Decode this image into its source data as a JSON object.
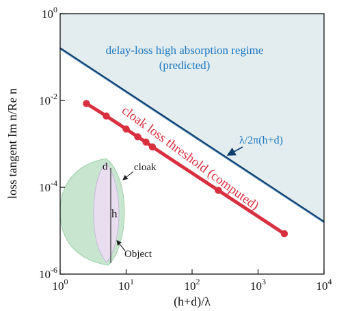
{
  "chart_data": {
    "type": "line",
    "x_scale": "log",
    "y_scale": "log",
    "xlim": [
      1,
      10000
    ],
    "ylim": [
      1e-06,
      1
    ],
    "xlabel": "(h+d)/λ",
    "ylabel": "loss tangent Im n/Re n",
    "x_ticks": [
      {
        "base": "10",
        "exp": "0",
        "value": 1
      },
      {
        "base": "10",
        "exp": "1",
        "value": 10
      },
      {
        "base": "10",
        "exp": "2",
        "value": 100
      },
      {
        "base": "10",
        "exp": "3",
        "value": 1000
      },
      {
        "base": "10",
        "exp": "4",
        "value": 10000
      }
    ],
    "y_ticks": [
      {
        "base": "10",
        "exp": "-6",
        "value": 1e-06
      },
      {
        "base": "10",
        "exp": "-4",
        "value": 0.0001
      },
      {
        "base": "10",
        "exp": "-2",
        "value": 0.01
      },
      {
        "base": "10",
        "exp": "0",
        "value": 1
      }
    ],
    "series": [
      {
        "name": "λ/2π(h+d)",
        "color": "#0b3d6e",
        "points": [
          [
            1,
            0.159
          ],
          [
            10000,
            1.59e-05
          ]
        ]
      },
      {
        "name": "cloak loss threshold (computed)",
        "color": "#d93040",
        "points": [
          [
            2.5,
            0.0085
          ],
          [
            5,
            0.0044
          ],
          [
            10,
            0.0022
          ],
          [
            15,
            0.00145
          ],
          [
            20,
            0.0011
          ],
          [
            25,
            0.00085
          ],
          [
            250,
            8.5e-05
          ],
          [
            2500,
            8.5e-06
          ]
        ]
      }
    ],
    "region": {
      "label_line1": "delay-loss high absorption regime",
      "label_line2": "(predicted)",
      "color": "#e3ecef",
      "label_color": "#1a78c2"
    },
    "annotations": {
      "line_label": "λ/2π(h+d)",
      "threshold_label": "cloak loss threshold (computed)"
    },
    "inset": {
      "cloak_label": "cloak",
      "object_label": "Object",
      "d_label": "d",
      "h_label": "h",
      "cloak_color": "#c8e6cf",
      "object_color": "#e8def0"
    }
  }
}
